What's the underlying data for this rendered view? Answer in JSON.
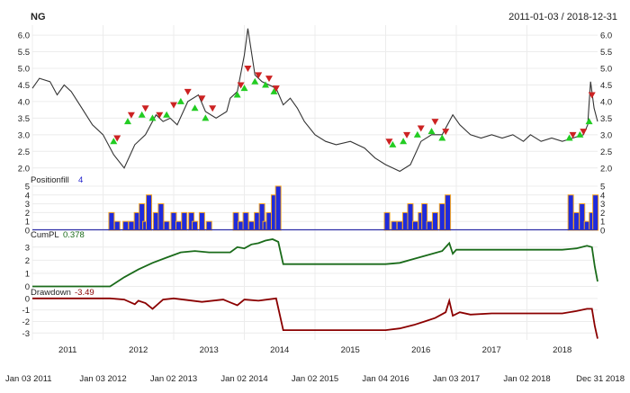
{
  "header": {
    "symbol": "NG",
    "date_range": "2011-01-03 / 2018-12-31"
  },
  "colors": {
    "background": "#ffffff",
    "grid": "#ececec",
    "price_line": "#333333",
    "buy_marker": "#22cc22",
    "sell_marker": "#cc2222",
    "position_fill": "#1f2bdc",
    "position_fill_outline": "#f5a623",
    "baseline": "#3333aa",
    "cumpl": "#1a6b1a",
    "drawdown": "#8b0000"
  },
  "chart_data": [
    {
      "type": "line",
      "panel": "price",
      "y_ticks": [
        "2.0",
        "2.5",
        "3.0",
        "3.5",
        "4.0",
        "4.5",
        "5.0",
        "5.5",
        "6.0"
      ],
      "ylim": [
        1.75,
        6.3
      ],
      "series": [
        {
          "kind": "price",
          "x": [
            2011.0,
            2011.1,
            2011.25,
            2011.35,
            2011.45,
            2011.55,
            2011.7,
            2011.85,
            2012.0,
            2012.15,
            2012.3,
            2012.45,
            2012.6,
            2012.75,
            2012.85,
            2012.95,
            2013.05,
            2013.2,
            2013.35,
            2013.45,
            2013.6,
            2013.75,
            2013.8,
            2013.9,
            2014.0,
            2014.05,
            2014.15,
            2014.25,
            2014.35,
            2014.45,
            2014.55,
            2014.65,
            2014.75,
            2014.85,
            2015.0,
            2015.15,
            2015.3,
            2015.5,
            2015.7,
            2015.85,
            2016.0,
            2016.1,
            2016.2,
            2016.35,
            2016.5,
            2016.65,
            2016.8,
            2016.95,
            2017.05,
            2017.2,
            2017.35,
            2017.5,
            2017.65,
            2017.8,
            2017.95,
            2018.05,
            2018.2,
            2018.35,
            2018.5,
            2018.65,
            2018.8,
            2018.86,
            2018.9,
            2018.95,
            2019.0
          ],
          "y": [
            4.4,
            4.7,
            4.6,
            4.2,
            4.5,
            4.3,
            3.8,
            3.3,
            3.0,
            2.4,
            2.0,
            2.7,
            3.0,
            3.6,
            3.4,
            3.5,
            3.3,
            4.0,
            4.2,
            3.7,
            3.5,
            3.7,
            4.1,
            4.3,
            5.4,
            6.2,
            4.8,
            4.6,
            4.5,
            4.4,
            3.9,
            4.1,
            3.8,
            3.4,
            3.0,
            2.8,
            2.7,
            2.8,
            2.6,
            2.3,
            2.1,
            2.0,
            1.9,
            2.1,
            2.8,
            3.0,
            3.0,
            3.6,
            3.3,
            3.0,
            2.9,
            3.0,
            2.9,
            3.0,
            2.8,
            3.0,
            2.8,
            2.9,
            2.8,
            2.9,
            3.0,
            3.3,
            4.6,
            3.8,
            3.4
          ]
        },
        {
          "kind": "buy_markers",
          "x": [
            2012.15,
            2012.35,
            2012.55,
            2012.7,
            2012.9,
            2013.1,
            2013.3,
            2013.45,
            2013.9,
            2014.0,
            2014.15,
            2014.3,
            2014.42,
            2016.1,
            2016.25,
            2016.45,
            2016.65,
            2016.8,
            2018.6,
            2018.75,
            2018.88
          ],
          "y": [
            2.8,
            3.4,
            3.6,
            3.5,
            3.6,
            4.0,
            3.8,
            3.5,
            4.2,
            4.4,
            4.6,
            4.5,
            4.3,
            2.7,
            2.8,
            3.0,
            3.1,
            2.9,
            2.9,
            3.0,
            3.4
          ]
        },
        {
          "kind": "sell_markers",
          "x": [
            2012.2,
            2012.4,
            2012.6,
            2012.8,
            2013.0,
            2013.2,
            2013.4,
            2013.55,
            2013.95,
            2014.05,
            2014.2,
            2014.35,
            2014.45,
            2016.05,
            2016.3,
            2016.5,
            2016.7,
            2016.85,
            2018.65,
            2018.8,
            2018.92
          ],
          "y": [
            2.9,
            3.6,
            3.8,
            3.6,
            3.9,
            4.3,
            4.1,
            3.8,
            4.5,
            5.0,
            4.8,
            4.7,
            4.4,
            2.8,
            3.0,
            3.2,
            3.4,
            3.1,
            3.0,
            3.1,
            4.2
          ]
        }
      ]
    },
    {
      "type": "bar",
      "panel": "position",
      "label": "Positionfill",
      "last_value": "4",
      "y_ticks": [
        "0",
        "1",
        "2",
        "3",
        "4",
        "5"
      ],
      "ylim": [
        0,
        5.3
      ],
      "x": [
        2012.12,
        2012.2,
        2012.32,
        2012.4,
        2012.48,
        2012.55,
        2012.6,
        2012.65,
        2012.75,
        2012.82,
        2012.9,
        2013.0,
        2013.07,
        2013.15,
        2013.25,
        2013.3,
        2013.4,
        2013.5,
        2013.88,
        2013.95,
        2014.02,
        2014.1,
        2014.18,
        2014.25,
        2014.3,
        2014.35,
        2014.42,
        2014.48,
        2016.02,
        2016.12,
        2016.2,
        2016.28,
        2016.35,
        2016.42,
        2016.5,
        2016.55,
        2016.62,
        2016.7,
        2016.8,
        2016.88,
        2018.62,
        2018.7,
        2018.78,
        2018.85,
        2018.92,
        2018.97
      ],
      "values": [
        2,
        1,
        1,
        1,
        2,
        3,
        1,
        4,
        2,
        3,
        1,
        2,
        1,
        2,
        2,
        1,
        2,
        1,
        2,
        1,
        2,
        1,
        2,
        3,
        1,
        2,
        4,
        5,
        2,
        1,
        1,
        2,
        3,
        1,
        2,
        3,
        1,
        2,
        3,
        4,
        4,
        2,
        3,
        1,
        2,
        4
      ]
    },
    {
      "type": "line",
      "panel": "cumpl",
      "label": "CumPL",
      "last_value": "0.378",
      "y_ticks": [
        "0",
        "1",
        "2",
        "3"
      ],
      "ylim": [
        -0.1,
        3.6
      ],
      "x": [
        2011.0,
        2012.1,
        2012.3,
        2012.5,
        2012.7,
        2012.9,
        2013.1,
        2013.3,
        2013.5,
        2013.8,
        2013.9,
        2014.0,
        2014.1,
        2014.2,
        2014.3,
        2014.4,
        2014.48,
        2014.55,
        2015.0,
        2016.0,
        2016.2,
        2016.4,
        2016.6,
        2016.8,
        2016.9,
        2016.95,
        2017.0,
        2017.5,
        2018.0,
        2018.5,
        2018.7,
        2018.85,
        2018.92,
        2018.96,
        2019.0
      ],
      "y": [
        0.0,
        0.0,
        0.7,
        1.3,
        1.8,
        2.2,
        2.6,
        2.7,
        2.6,
        2.6,
        3.0,
        2.9,
        3.2,
        3.3,
        3.5,
        3.6,
        3.4,
        1.7,
        1.7,
        1.7,
        1.8,
        2.1,
        2.4,
        2.7,
        3.3,
        2.5,
        2.8,
        2.8,
        2.8,
        2.8,
        2.9,
        3.1,
        3.0,
        1.5,
        0.378
      ]
    },
    {
      "type": "line",
      "panel": "drawdown",
      "label": "Drawdown",
      "last_value": "-3.49",
      "y_ticks": [
        "0",
        "-1",
        "-2",
        "-3"
      ],
      "ylim": [
        -3.6,
        0.3
      ],
      "x": [
        2011.0,
        2012.1,
        2012.3,
        2012.45,
        2012.5,
        2012.6,
        2012.7,
        2012.85,
        2013.0,
        2013.4,
        2013.7,
        2013.9,
        2014.0,
        2014.2,
        2014.45,
        2014.55,
        2015.0,
        2015.5,
        2016.0,
        2016.2,
        2016.4,
        2016.55,
        2016.7,
        2016.85,
        2016.9,
        2016.95,
        2017.05,
        2017.2,
        2017.5,
        2018.0,
        2018.5,
        2018.7,
        2018.85,
        2018.92,
        2018.96,
        2019.0
      ],
      "y": [
        0.0,
        0.0,
        -0.1,
        -0.5,
        -0.2,
        -0.4,
        -0.9,
        -0.1,
        0.0,
        -0.3,
        -0.1,
        -0.6,
        -0.1,
        -0.2,
        0.0,
        -2.75,
        -2.75,
        -2.75,
        -2.75,
        -2.6,
        -2.3,
        -2.0,
        -1.7,
        -1.2,
        -0.2,
        -1.5,
        -1.2,
        -1.4,
        -1.3,
        -1.3,
        -1.3,
        -1.1,
        -0.9,
        -0.9,
        -2.4,
        -3.49
      ]
    },
    {
      "type": "axis",
      "panel": "time-axis",
      "year_labels": [
        "2011",
        "2012",
        "2013",
        "2014",
        "2015",
        "2016",
        "2017",
        "2018"
      ],
      "year_positions": [
        2011.0,
        2012.0,
        2013.0,
        2014.0,
        2015.0,
        2016.0,
        2017.0,
        2018.0
      ],
      "date_labels": [
        "Jan 03 2011",
        "Jan 03 2012",
        "Jan 02 2013",
        "Jan 02 2014",
        "Jan 02 2015",
        "Jan 04 2016",
        "Jan 03 2017",
        "Jan 02 2018",
        "Dec 31 2018"
      ],
      "date_positions": [
        2011.0,
        2012.0,
        2013.0,
        2014.0,
        2015.0,
        2016.0,
        2017.0,
        2018.0,
        2019.0
      ],
      "xlim": [
        2011.0,
        2019.0
      ]
    }
  ]
}
